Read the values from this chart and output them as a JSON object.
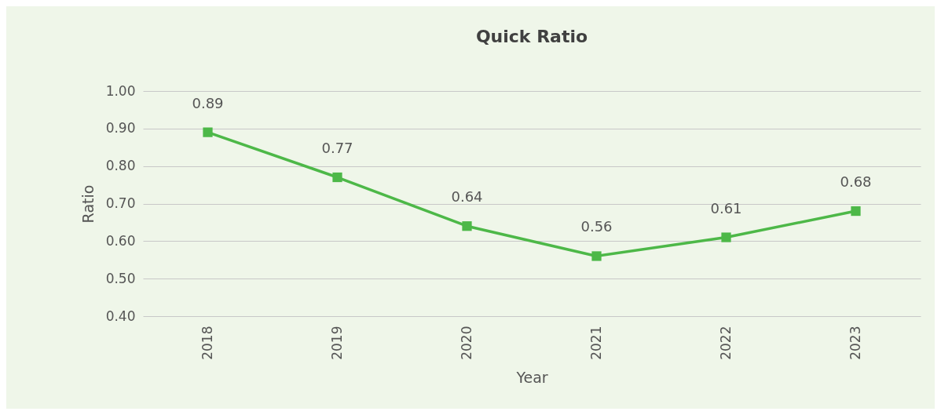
{
  "chart_data": {
    "type": "line",
    "title": "Quick Ratio",
    "xlabel": "Year",
    "ylabel": "Ratio",
    "categories": [
      "2018",
      "2019",
      "2020",
      "2021",
      "2022",
      "2023"
    ],
    "series": [
      {
        "color": "#4db848",
        "values": [
          0.89,
          0.77,
          0.64,
          0.56,
          0.61,
          0.68
        ]
      }
    ],
    "ylim": [
      0.4,
      1.0
    ],
    "yticks": [
      {
        "value": 0.4,
        "label": "0.40"
      },
      {
        "value": 0.5,
        "label": "0.50"
      },
      {
        "value": 0.6,
        "label": "0.60"
      },
      {
        "value": 0.7,
        "label": "0.70"
      },
      {
        "value": 0.8,
        "label": "0.80"
      },
      {
        "value": 0.9,
        "label": "0.90"
      },
      {
        "value": 1.0,
        "label": "1.00"
      }
    ],
    "grid": "y",
    "marker": "square",
    "line_style": "solid",
    "data_labels": true,
    "legend": false
  }
}
